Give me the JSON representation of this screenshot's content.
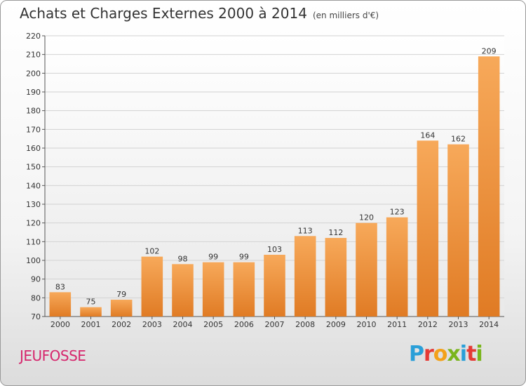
{
  "header": {
    "title": "Achats et Charges Externes 2000 à 2014",
    "unit": "(en milliers d'€)"
  },
  "footer": {
    "commune": "JEUFOSSE",
    "brand_letters": [
      "P",
      "r",
      "o",
      "x",
      "i",
      "t",
      "i"
    ]
  },
  "colors": {
    "bar_light": "#f7a95a",
    "bar_dark": "#e07b24",
    "commune": "#d6256c"
  },
  "chart_data": {
    "type": "bar",
    "title": "Achats et Charges Externes 2000 à 2014",
    "subtitle": "(en milliers d'€)",
    "xlabel": "",
    "ylabel": "",
    "categories": [
      "2000",
      "2001",
      "2002",
      "2003",
      "2004",
      "2005",
      "2006",
      "2007",
      "2008",
      "2009",
      "2010",
      "2011",
      "2012",
      "2013",
      "2014"
    ],
    "values": [
      83,
      75,
      79,
      102,
      98,
      99,
      99,
      103,
      113,
      112,
      120,
      123,
      164,
      162,
      209
    ],
    "ylim": [
      70,
      220
    ],
    "yticks": [
      70,
      80,
      90,
      100,
      110,
      120,
      130,
      140,
      150,
      160,
      170,
      180,
      190,
      200,
      210,
      220
    ],
    "grid": true,
    "data_labels": true
  }
}
